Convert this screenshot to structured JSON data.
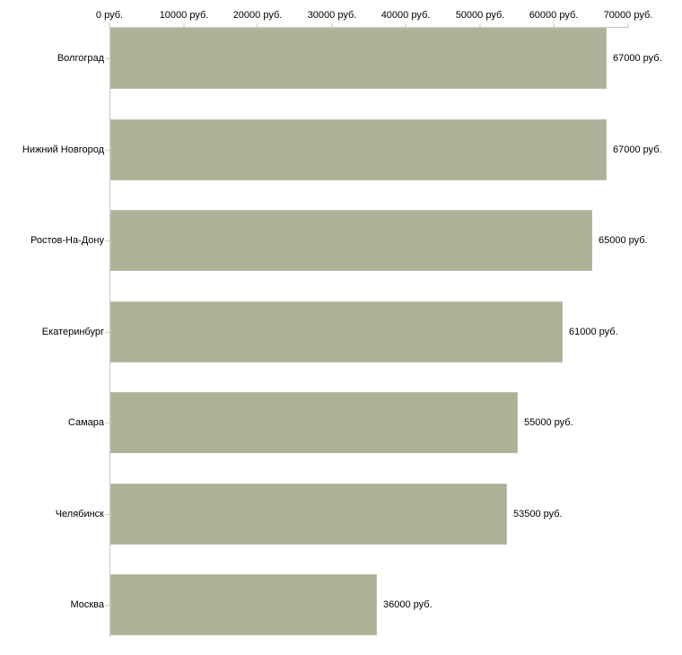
{
  "chart_data": {
    "type": "bar",
    "orientation": "horizontal",
    "title": "",
    "xlabel": "",
    "ylabel": "",
    "categories": [
      "Волгоград",
      "Нижний Новгород",
      "Ростов-На-Дону",
      "Екатеринбург",
      "Самара",
      "Челябинск",
      "Москва"
    ],
    "values": [
      67000,
      67000,
      65000,
      61000,
      55000,
      53500,
      36000
    ],
    "value_labels": [
      "67000 руб.",
      "67000 руб.",
      "65000 руб.",
      "61000 руб.",
      "55000 руб.",
      "53500 руб.",
      "36000 руб."
    ],
    "x_axis": {
      "position": "top",
      "min": 0,
      "max": 70000,
      "ticks": [
        0,
        10000,
        20000,
        30000,
        40000,
        50000,
        60000,
        70000
      ],
      "tick_labels": [
        "0 руб.",
        "10000 руб.",
        "20000 руб.",
        "30000 руб.",
        "40000 руб.",
        "50000 руб.",
        "60000 руб.",
        "70000 руб."
      ]
    },
    "grid": false,
    "legend": null,
    "colors": {
      "bar_fill": "#abb297",
      "bar_edge": "#b9bfa6",
      "axis_line": "#c6c6c6",
      "tick_mark": "#e4e4c8",
      "category_tick": "#cfcfbc",
      "text": "#000000",
      "background": "#ffffff"
    }
  }
}
